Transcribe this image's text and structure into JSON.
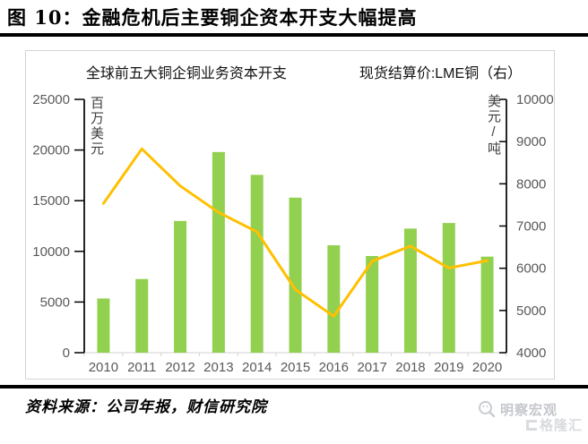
{
  "page": {
    "title": "图 10：金融危机后主要铜企资本开支大幅提高"
  },
  "chart_data": {
    "type": "combo",
    "categories": [
      "2010",
      "2011",
      "2012",
      "2013",
      "2014",
      "2015",
      "2016",
      "2017",
      "2018",
      "2019",
      "2020"
    ],
    "series": [
      {
        "name": "全球前五大铜企铜业务资本开支",
        "type": "bar",
        "axis": "left",
        "color": "#92D050",
        "values": [
          5350,
          7270,
          13000,
          19800,
          17550,
          15300,
          10600,
          9540,
          12250,
          12800,
          9480
        ]
      },
      {
        "name": "现货结算价:LME铜（右）",
        "type": "line",
        "axis": "right",
        "color": "#FFC000",
        "values": [
          7535,
          8828,
          7950,
          7322,
          6862,
          5494,
          4863,
          6166,
          6526,
          6005,
          6181
        ]
      }
    ],
    "left_axis": {
      "title": "百万美元",
      "min": 0,
      "max": 25000,
      "step": 5000,
      "tick_labels": [
        "0",
        "5000",
        "10000",
        "15000",
        "20000",
        "25000"
      ]
    },
    "right_axis": {
      "title": "美元/吨",
      "min": 4000,
      "max": 10000,
      "step": 1000,
      "tick_labels": [
        "4000",
        "5000",
        "6000",
        "7000",
        "8000",
        "9000",
        "10000"
      ]
    },
    "grid": false,
    "legend_position": "top"
  },
  "footer": {
    "source": "资料来源：公司年报，财信研究院"
  },
  "watermark": {
    "brand": "明察宏观",
    "platform": "格隆汇"
  },
  "colors": {
    "bar": "#92D050",
    "line": "#FFC000",
    "axis_text": "#595959",
    "axis_line": "#000000",
    "baseline": "#D9D9D9",
    "chart_border": "#D4D4D4",
    "rule": "#000000",
    "watermark": "#C6C9CE"
  }
}
